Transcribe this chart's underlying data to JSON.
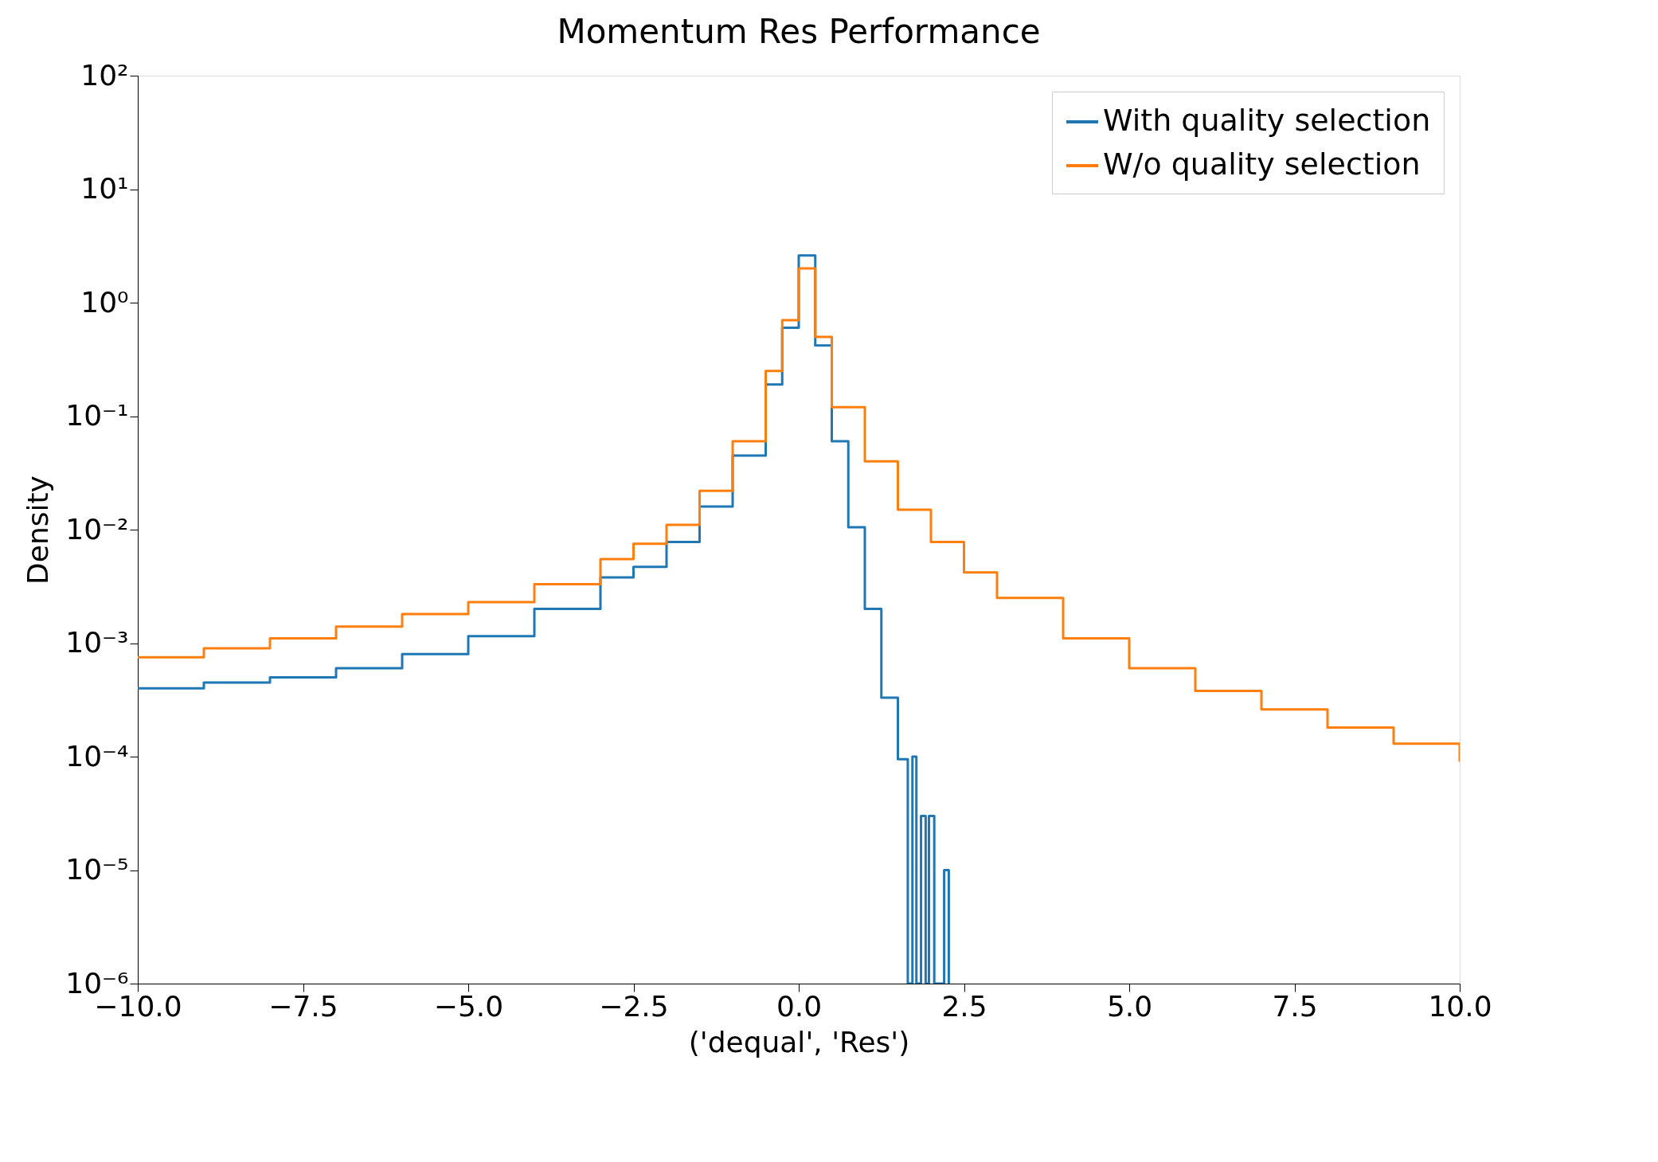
{
  "chart_data": {
    "type": "step",
    "title": "Momentum Res Performance",
    "xlabel": "('dequal', 'Res')",
    "ylabel": "Density",
    "xlim": [
      -10,
      10
    ],
    "ylim": [
      1e-06,
      100
    ],
    "log": "y",
    "grid": false,
    "legend": "top right",
    "xticks": [
      {
        "value": -10,
        "label": "−10.0"
      },
      {
        "value": -7.5,
        "label": "−7.5"
      },
      {
        "value": -5,
        "label": "−5.0"
      },
      {
        "value": -2.5,
        "label": "−2.5"
      },
      {
        "value": 0,
        "label": "0.0"
      },
      {
        "value": 2.5,
        "label": "2.5"
      },
      {
        "value": 5,
        "label": "5.0"
      },
      {
        "value": 7.5,
        "label": "7.5"
      },
      {
        "value": 10,
        "label": "10.0"
      }
    ],
    "yticks": [
      {
        "value": 1e-06,
        "label": "10⁻⁶"
      },
      {
        "value": 1e-05,
        "label": "10⁻⁵"
      },
      {
        "value": 0.0001,
        "label": "10⁻⁴"
      },
      {
        "value": 0.001,
        "label": "10⁻³"
      },
      {
        "value": 0.01,
        "label": "10⁻²"
      },
      {
        "value": 0.1,
        "label": "10⁻¹"
      },
      {
        "value": 1,
        "label": "10⁰"
      },
      {
        "value": 10,
        "label": "10¹"
      },
      {
        "value": 100,
        "label": "10²"
      }
    ],
    "series": [
      {
        "name": "With quality selection",
        "color": "#1f77b4",
        "x": [
          -10,
          -9,
          -8,
          -7,
          -6,
          -5,
          -4,
          -3,
          -2.5,
          -2,
          -1.5,
          -1,
          -0.5,
          -0.25,
          0,
          0.25,
          0.5,
          0.75,
          1,
          1.25,
          1.5,
          1.65,
          1.72,
          1.78,
          1.85,
          1.92,
          1.97,
          2.05,
          2.2,
          2.27
        ],
        "values": [
          0.0004,
          0.00045,
          0.0005,
          0.0006,
          0.0008,
          0.00115,
          0.002,
          0.0038,
          0.0047,
          0.0078,
          0.016,
          0.045,
          0.19,
          0.6,
          2.6,
          0.42,
          0.06,
          0.0105,
          0.002,
          0.00033,
          9.5e-05,
          1e-06,
          0.0001,
          1e-06,
          3e-05,
          1e-06,
          3e-05,
          1e-06,
          1e-05,
          1e-06
        ]
      },
      {
        "name": "W/o quality selection",
        "color": "#ff7f0e",
        "x": [
          -10,
          -9,
          -8,
          -7,
          -6,
          -5,
          -4,
          -3,
          -2.5,
          -2,
          -1.5,
          -1,
          -0.5,
          -0.25,
          0,
          0.25,
          0.5,
          1,
          1.5,
          2,
          2.5,
          3,
          4,
          5,
          6,
          7,
          8,
          9,
          10
        ],
        "values": [
          0.00075,
          0.0009,
          0.0011,
          0.0014,
          0.0018,
          0.0023,
          0.0033,
          0.0055,
          0.0075,
          0.011,
          0.022,
          0.06,
          0.25,
          0.7,
          2.0,
          0.5,
          0.12,
          0.04,
          0.015,
          0.0078,
          0.0042,
          0.0025,
          0.0011,
          0.0006,
          0.00038,
          0.00026,
          0.00018,
          0.00013,
          9e-05
        ]
      }
    ]
  }
}
